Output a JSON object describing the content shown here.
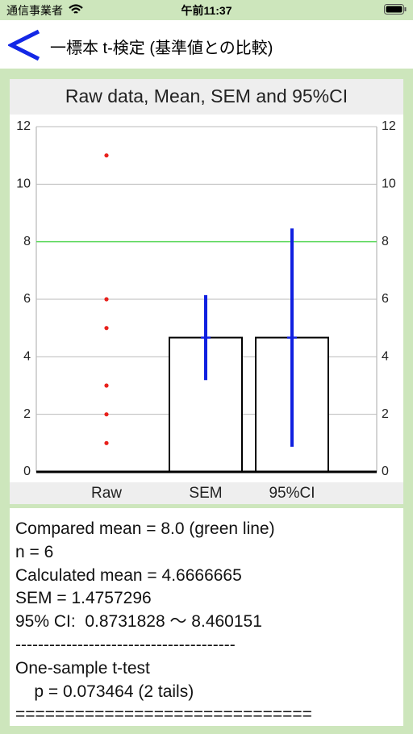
{
  "status_bar": {
    "carrier": "通信事業者",
    "time": "午前11:37"
  },
  "nav": {
    "title": "一標本 t-検定 (基準値との比較)"
  },
  "chart_data": {
    "type": "bar",
    "title": "Raw data, Mean, SEM and 95%CI",
    "categories": [
      "Raw",
      "SEM",
      "95%CI"
    ],
    "raw_values": [
      1,
      2,
      3,
      5,
      6,
      11
    ],
    "raw_color": "#e8211c",
    "bar_values": [
      null,
      4.6666665,
      4.6666665
    ],
    "errors": [
      null,
      1.4757296,
      3.7934841
    ],
    "error_color": "#1020e0",
    "reference_line": {
      "value": 8,
      "color": "#5ad85a"
    },
    "ylim": [
      0,
      12
    ],
    "yticks": [
      0,
      2,
      4,
      6,
      8,
      10,
      12
    ],
    "grid": true
  },
  "results": {
    "lines": [
      "Compared mean = 8.0 (green line)",
      "n = 6",
      "Calculated mean = 4.6666665",
      "SEM = 1.4757296",
      "95% CI:  0.8731828 〜 8.460151",
      "---------------------------------------",
      "One-sample t-test",
      "    p = 0.073464 (2 tails)",
      "=============================="
    ]
  }
}
